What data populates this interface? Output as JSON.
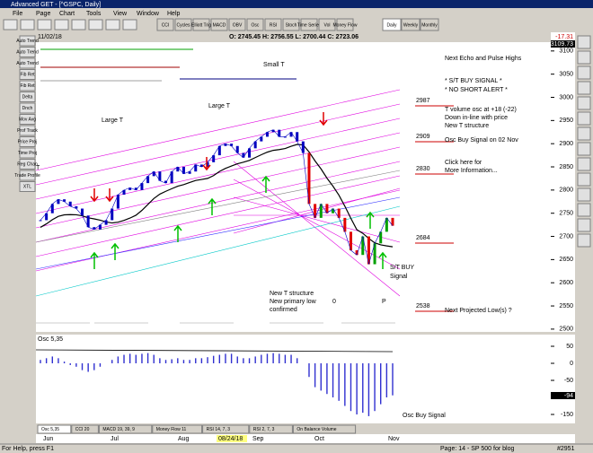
{
  "window": {
    "title": "Advanced GET - [^GSPC, Daily]"
  },
  "menu": [
    "File",
    "Page",
    "Chart",
    "Tools",
    "View",
    "Window",
    "Help"
  ],
  "toolbar": [
    "CCI",
    "Cycles",
    "Elliott Trig",
    "MACD",
    "OBV",
    "Osc",
    "RSI",
    "Stoch",
    "Time Series",
    "Vol",
    "Money Flow"
  ],
  "periods": [
    "Daily",
    "Weekly",
    "Monthly"
  ],
  "left_tools": [
    "Auto Trend",
    "Auto Trend",
    "Auto Trend",
    "Fib Ret",
    "Fib Ret",
    "Delta",
    "Dnch",
    "Mov Avg",
    "Prof Track",
    "Price Proj",
    "Time Proj",
    "Reg Chan",
    "Trade Profile",
    "XTL"
  ],
  "header": {
    "date": "11/02/18",
    "ohlc": "O: 2745.45  H: 2756.55  L: 2700.44  C: 2723.06",
    "change": "-17.31"
  },
  "price_chart": {
    "top_label": "3109.73",
    "ylim": [
      2494,
      3119
    ],
    "yticks": [
      3100,
      3050,
      3000,
      2950,
      2900,
      2850,
      2800,
      2750,
      2700,
      2650,
      2600,
      2550,
      2500
    ],
    "values": [
      2735,
      2750,
      2770,
      2780,
      2775,
      2765,
      2760,
      2745,
      2720,
      2715,
      2725,
      2735,
      2760,
      2790,
      2800,
      2805,
      2800,
      2815,
      2830,
      2840,
      2820,
      2815,
      2840,
      2850,
      2835,
      2840,
      2855,
      2850,
      2860,
      2875,
      2895,
      2900,
      2895,
      2880,
      2870,
      2890,
      2905,
      2915,
      2925,
      2930,
      2915,
      2915,
      2925,
      2905,
      2880,
      2770,
      2740,
      2770,
      2750,
      2760,
      2740,
      2710,
      2670,
      2660,
      2700,
      2640,
      2685,
      2710,
      2740,
      2723
    ],
    "annotations": [
      "Small T",
      "Large T",
      "Large T",
      "T",
      "New T structure",
      "New primary low",
      "confirmed",
      "0",
      "P",
      "S/T BUY",
      "Signal"
    ],
    "side_notes": [
      "Next Echo and Pulse Highs",
      "* S/T BUY SIGNAL *",
      "* NO SHORT ALERT *",
      "T volume osc at +18 (-22)",
      "Down in-line with price",
      "New T structure",
      "Osc Buy Signal on 02 Nov",
      "Click here for",
      "More Information...",
      "Next Projected Low(s) ?"
    ],
    "levels": [
      "2987",
      "2909",
      "2830",
      "2684",
      "2538"
    ]
  },
  "oscillator": {
    "name": "Osc 5,35",
    "ylim": [
      -171,
      79
    ],
    "yticks": [
      50,
      0,
      -50,
      -150
    ],
    "last_label": "-94",
    "note": "Osc Buy Signal",
    "values": [
      10,
      15,
      20,
      15,
      5,
      -5,
      -10,
      -20,
      -25,
      -20,
      -10,
      0,
      10,
      20,
      25,
      28,
      25,
      28,
      30,
      25,
      15,
      10,
      12,
      15,
      10,
      10,
      15,
      15,
      18,
      22,
      25,
      28,
      28,
      20,
      15,
      15,
      20,
      25,
      28,
      30,
      28,
      25,
      25,
      15,
      0,
      -40,
      -70,
      -80,
      -90,
      -100,
      -110,
      -125,
      -140,
      -150,
      -145,
      -155,
      -140,
      -120,
      -100,
      -94
    ]
  },
  "tabs": [
    "Osc 5,35",
    "CCI 20",
    "MACD 19, 39, 9",
    "Money Flow 11",
    "RSI 14, 7, 3",
    "RSI 2, 7, 3",
    "On Balance Volume"
  ],
  "months": [
    "Jun",
    "Jul",
    "Aug",
    "08/24/18",
    "Sep",
    "Oct",
    "Nov"
  ],
  "status": {
    "help": "For Help, press F1",
    "page": "Page: 14 - SP 500 for blog",
    "id": "#2951"
  }
}
